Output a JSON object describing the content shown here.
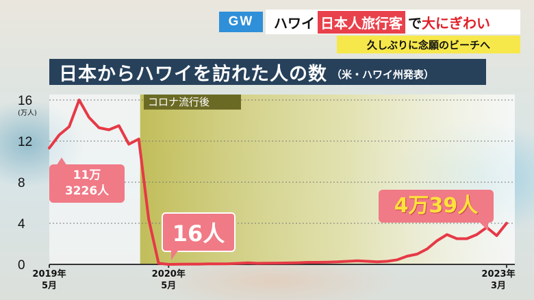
{
  "banner": {
    "tag": "GW",
    "headline_pre": "ハワイ",
    "headline_highlight": "日本人旅行客",
    "headline_mid": "で",
    "headline_red": "大にぎわい",
    "subheadline": "久しぶりに念願のビーチへ"
  },
  "chart_title": {
    "main": "日本からハワイを訪れた人の数",
    "source": "（米・ハワイ州発表）"
  },
  "shaded_region_label": "コロナ流行後",
  "callouts": {
    "first_a": "11万",
    "first_b": "3226人",
    "low": "16人",
    "latest": "4万39人"
  },
  "colors": {
    "line": "#e63946",
    "shade": "#c9c55b",
    "title_bg": "#27415b",
    "callout": "#f07a86"
  },
  "chart_data": {
    "type": "line",
    "title": "日本からハワイを訪れた人の数",
    "ylabel": "(万人)",
    "ylim": [
      0,
      16
    ],
    "yticks": [
      "0",
      "4",
      "8",
      "12",
      "16"
    ],
    "x_labels": [
      {
        "year": "2019年",
        "month": "5月"
      },
      {
        "year": "2020年",
        "month": "5月"
      },
      {
        "year": "2023年",
        "month": "3月"
      }
    ],
    "shaded_from": "2020-02",
    "x": [
      "2019-05",
      "2019-06",
      "2019-07",
      "2019-08",
      "2019-09",
      "2019-10",
      "2019-11",
      "2019-12",
      "2020-01",
      "2020-02",
      "2020-03",
      "2020-04",
      "2020-05",
      "2020-06",
      "2020-07",
      "2020-08",
      "2020-09",
      "2020-10",
      "2020-11",
      "2020-12",
      "2021-01",
      "2021-02",
      "2021-03",
      "2021-04",
      "2021-05",
      "2021-06",
      "2021-07",
      "2021-08",
      "2021-09",
      "2021-10",
      "2021-11",
      "2021-12",
      "2022-01",
      "2022-02",
      "2022-03",
      "2022-04",
      "2022-05",
      "2022-06",
      "2022-07",
      "2022-08",
      "2022-09",
      "2022-10",
      "2022-11",
      "2022-12",
      "2023-01",
      "2023-02",
      "2023-03"
    ],
    "series": [
      {
        "values": [
          11.3226,
          12.6,
          13.4,
          16.0,
          14.3,
          13.3,
          13.1,
          13.5,
          11.7,
          12.2,
          4.4,
          0.1,
          0.0016,
          0.02,
          0.03,
          0.03,
          0.05,
          0.05,
          0.06,
          0.1,
          0.15,
          0.1,
          0.12,
          0.13,
          0.14,
          0.16,
          0.2,
          0.2,
          0.22,
          0.25,
          0.3,
          0.35,
          0.3,
          0.25,
          0.3,
          0.45,
          0.8,
          1.0,
          1.5,
          2.3,
          2.9,
          2.5,
          2.5,
          2.9,
          3.6,
          2.8,
          4.0039
        ]
      }
    ]
  }
}
